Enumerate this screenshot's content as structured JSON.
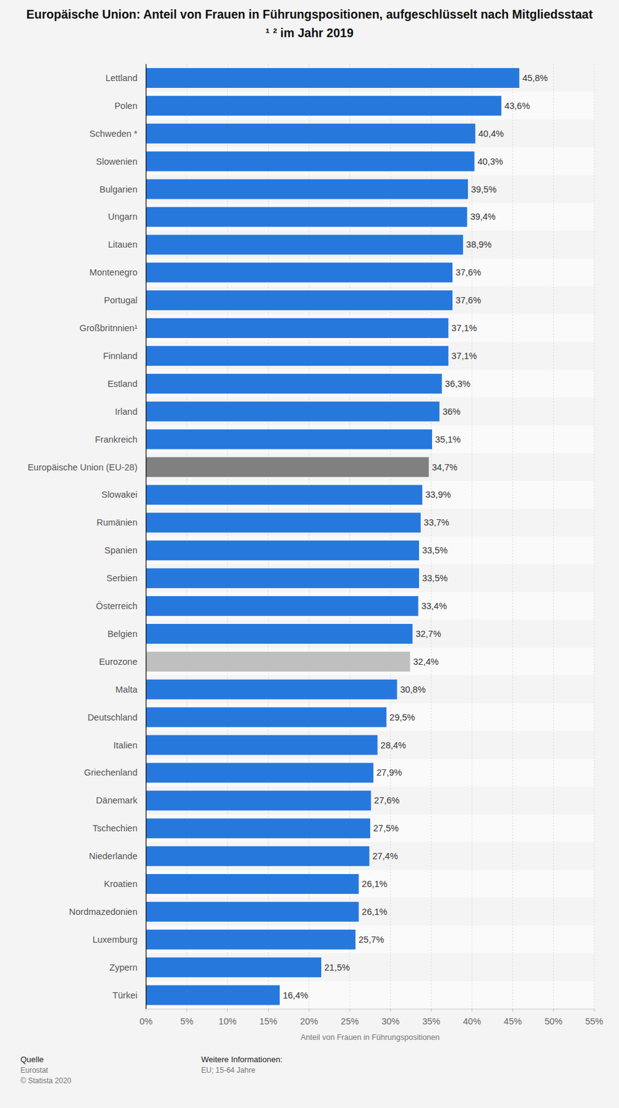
{
  "chart_data": {
    "type": "bar",
    "orientation": "horizontal",
    "title": "Europäische Union: Anteil von Frauen in Führungspositionen, aufgeschlüsselt nach Mitgliedsstaat ¹ ² im Jahr 2019",
    "x_label": "Anteil von Frauen in Führungspositionen",
    "annotations": [
      "Quelle",
      "Eurostat",
      "© Statista 2020",
      "Weitere Informationen:",
      "EU; 15-64 Jahre"
    ],
    "categories": [
      "Lettland",
      "Polen",
      "Schweden *",
      "Slowenien",
      "Bulgarien",
      "Ungarn",
      "Litauen",
      "Montenegro",
      "Portugal",
      "Großbritnnien¹",
      "Finnland",
      "Estland",
      "Irland",
      "Frankreich",
      "Europäische Union (EU-28)",
      "Slowakei",
      "Rumänien",
      "Spanien",
      "Serbien",
      "Österreich",
      "Belgien",
      "Eurozone",
      "Malta",
      "Deutschland",
      "Italien",
      "Griechenland",
      "Dänemark",
      "Tschechien",
      "Niederlande",
      "Kroatien",
      "Nordmazedonien",
      "Luxemburg",
      "Zypern",
      "Türkei"
    ],
    "values": [
      45.8,
      43.6,
      40.4,
      40.3,
      39.5,
      39.4,
      38.9,
      37.6,
      37.6,
      37.1,
      37.1,
      36.3,
      36,
      35.1,
      34.7,
      33.9,
      33.7,
      33.5,
      33.5,
      33.4,
      32.7,
      32.4,
      30.8,
      29.5,
      28.4,
      27.9,
      27.6,
      27.5,
      27.4,
      26.1,
      26.1,
      25.7,
      21.5,
      16.4
    ],
    "value_labels": [
      "45,8%",
      "43,6%",
      "40,4%",
      "40,3%",
      "39,5%",
      "39,4%",
      "38,9%",
      "37,6%",
      "37,6%",
      "37,1%",
      "37,1%",
      "36,3%",
      "36%",
      "35,1%",
      "34,7%",
      "33,9%",
      "33,7%",
      "33,5%",
      "33,5%",
      "33,4%",
      "32,7%",
      "32,4%",
      "30,8%",
      "29,5%",
      "28,4%",
      "27,9%",
      "27,6%",
      "27,5%",
      "27,4%",
      "26,1%",
      "26,1%",
      "25,7%",
      "21,5%",
      "16,4%"
    ],
    "colors": [
      "#2778dd",
      "#2778dd",
      "#2778dd",
      "#2778dd",
      "#2778dd",
      "#2778dd",
      "#2778dd",
      "#2778dd",
      "#2778dd",
      "#2778dd",
      "#2778dd",
      "#2778dd",
      "#2778dd",
      "#2778dd",
      "#808080",
      "#2778dd",
      "#2778dd",
      "#2778dd",
      "#2778dd",
      "#2778dd",
      "#2778dd",
      "#bfbfbf",
      "#2778dd",
      "#2778dd",
      "#2778dd",
      "#2778dd",
      "#2778dd",
      "#2778dd",
      "#2778dd",
      "#2778dd",
      "#2778dd",
      "#2778dd",
      "#2778dd",
      "#2778dd"
    ],
    "xlim": [
      0,
      55
    ],
    "xticks": [
      {
        "value": 0,
        "label": "0%"
      },
      {
        "value": 5,
        "label": "5%"
      },
      {
        "value": 10,
        "label": "10%"
      },
      {
        "value": 15,
        "label": "15%"
      },
      {
        "value": 20,
        "label": "20%"
      },
      {
        "value": 25,
        "label": "25%"
      },
      {
        "value": 30,
        "label": "30%"
      },
      {
        "value": 35,
        "label": "35%"
      },
      {
        "value": 40,
        "label": "40%"
      },
      {
        "value": 45,
        "label": "45%"
      },
      {
        "value": 50,
        "label": "50%"
      },
      {
        "value": 55,
        "label": "55%"
      }
    ],
    "grid": true,
    "data_labels": true
  }
}
